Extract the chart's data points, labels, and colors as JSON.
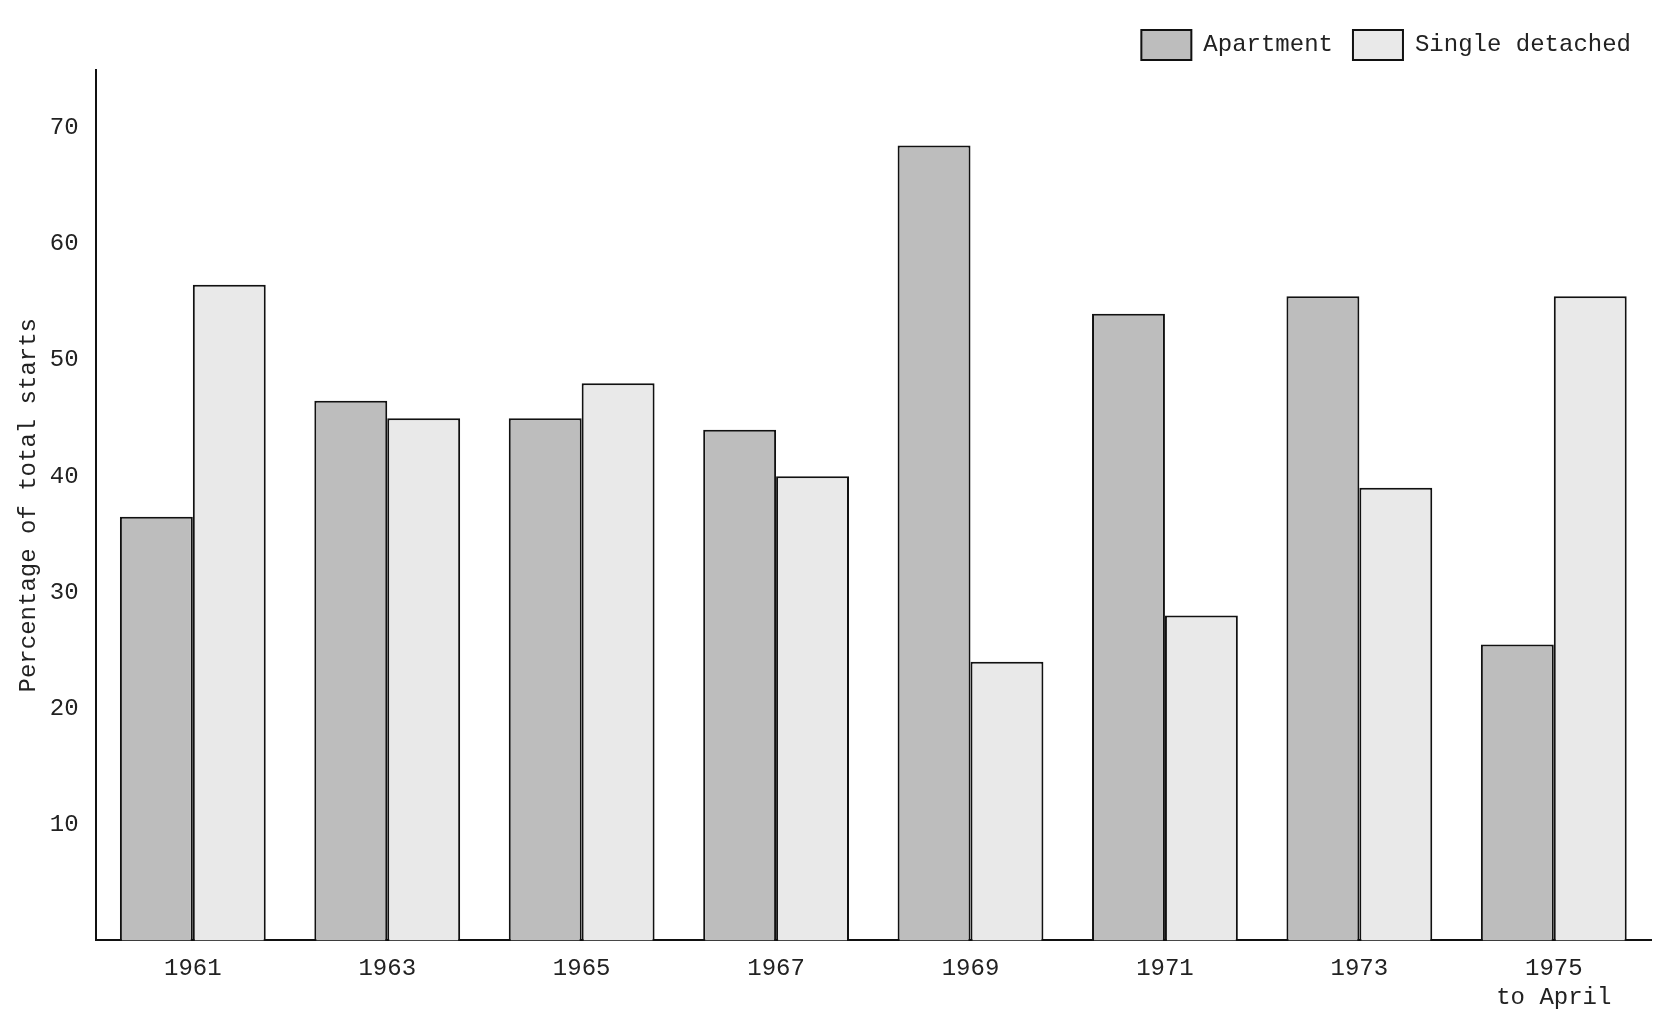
{
  "chart_data": {
    "type": "bar",
    "ylabel": "Percentage of total starts",
    "categories": [
      "1961",
      "1963",
      "1965",
      "1967",
      "1969",
      "1971",
      "1973",
      "1975\nto April"
    ],
    "series": [
      {
        "name": "Apartment",
        "color": "#bdbdbd",
        "values": [
          36.5,
          46.5,
          45,
          44,
          68.5,
          54,
          55.5,
          25.5
        ]
      },
      {
        "name": "Single detached",
        "color": "#e9e9e9",
        "values": [
          56.5,
          45,
          48,
          40,
          24,
          28,
          39,
          55.5
        ]
      }
    ],
    "ylim": [
      0,
      75
    ],
    "yticks": [
      10,
      20,
      30,
      40,
      50,
      60,
      70
    ],
    "grid": false,
    "legend": "top right"
  }
}
